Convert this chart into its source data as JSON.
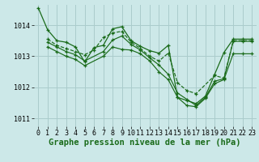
{
  "bg_color": "#cce8e8",
  "grid_color": "#aacccc",
  "line_color": "#1a6b1a",
  "xlabel": "Graphe pression niveau de la mer (hPa)",
  "xlabel_fontsize": 7.5,
  "tick_fontsize": 6.0,
  "ylim": [
    1010.75,
    1014.65
  ],
  "xlim": [
    -0.5,
    23.5
  ],
  "yticks": [
    1011,
    1012,
    1013,
    1014
  ],
  "xticks": [
    0,
    1,
    2,
    3,
    4,
    5,
    6,
    7,
    8,
    9,
    10,
    11,
    12,
    13,
    14,
    15,
    16,
    17,
    18,
    19,
    20,
    21,
    22,
    23
  ],
  "series": [
    {
      "x": [
        0,
        1,
        2,
        3,
        4,
        5,
        6,
        7,
        8,
        9,
        10,
        11,
        12,
        13,
        14,
        15,
        16,
        17,
        18,
        19,
        20,
        21,
        22,
        23
      ],
      "y": [
        1014.55,
        1013.85,
        1013.5,
        1013.45,
        1013.3,
        1012.82,
        1013.28,
        1013.35,
        1013.88,
        1013.95,
        1013.5,
        1013.32,
        1013.18,
        1013.1,
        1013.35,
        1011.68,
        1011.58,
        1011.48,
        1011.72,
        1012.42,
        1013.12,
        1013.55,
        1013.55,
        1013.55
      ],
      "linestyle": "-",
      "lw": 0.9
    },
    {
      "x": [
        1,
        2,
        3,
        4,
        5,
        6,
        7,
        8,
        9,
        10,
        11,
        12,
        13,
        14,
        15,
        16,
        17,
        19,
        20,
        21,
        22,
        23
      ],
      "y": [
        1013.55,
        1013.35,
        1013.25,
        1013.15,
        1013.05,
        1013.2,
        1013.6,
        1013.75,
        1013.8,
        1013.45,
        1013.25,
        1013.0,
        1012.85,
        1013.1,
        1012.15,
        1011.9,
        1011.8,
        1012.38,
        1012.3,
        1013.5,
        1013.5,
        1013.5
      ],
      "linestyle": "--",
      "lw": 0.85
    },
    {
      "x": [
        1,
        2,
        3,
        4,
        5,
        7,
        8,
        9,
        10,
        11,
        12,
        13,
        14,
        15,
        16,
        17,
        18,
        19,
        20,
        21,
        22,
        23
      ],
      "y": [
        1013.45,
        1013.3,
        1013.15,
        1013.05,
        1012.85,
        1013.15,
        1013.52,
        1013.65,
        1013.38,
        1013.2,
        1012.95,
        1012.72,
        1012.42,
        1011.82,
        1011.62,
        1011.42,
        1011.68,
        1012.2,
        1012.28,
        1013.48,
        1013.48,
        1013.48
      ],
      "linestyle": "-",
      "lw": 0.85
    },
    {
      "x": [
        1,
        2,
        3,
        4,
        5,
        7,
        8,
        9,
        10,
        11,
        12,
        13,
        14,
        15,
        16,
        17,
        18,
        19,
        20,
        21,
        22,
        23
      ],
      "y": [
        1013.3,
        1013.15,
        1013.0,
        1012.9,
        1012.7,
        1013.0,
        1013.3,
        1013.22,
        1013.2,
        1013.08,
        1012.85,
        1012.5,
        1012.25,
        1011.68,
        1011.42,
        1011.38,
        1011.65,
        1012.12,
        1012.25,
        1013.08,
        1013.08,
        1013.08
      ],
      "linestyle": "-",
      "lw": 0.85
    }
  ]
}
